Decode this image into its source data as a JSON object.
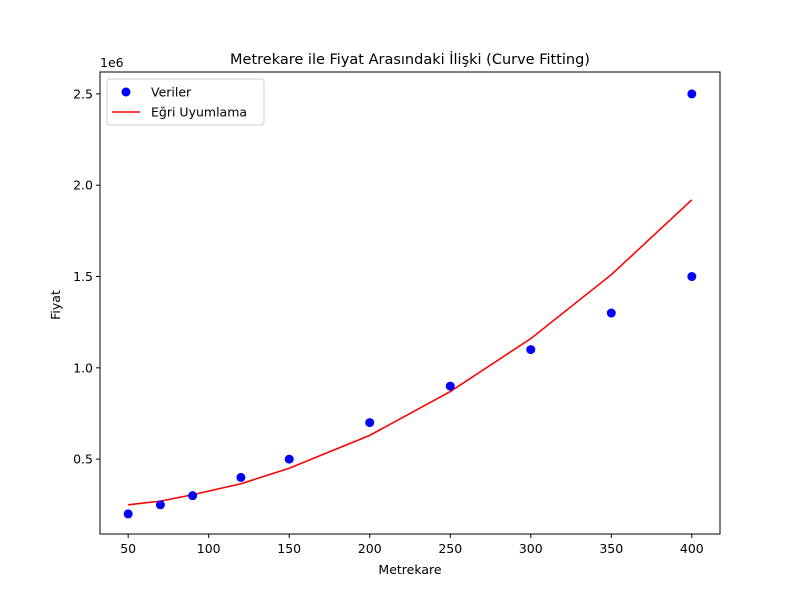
{
  "chart_data": {
    "type": "scatter",
    "title": "Metrekare ile Fiyat Arasındaki İlişki (Curve Fitting)",
    "xlabel": "Metrekare",
    "ylabel": "Fiyat",
    "y_offset_label": "1e6",
    "xlim": [
      32.5,
      417.5
    ],
    "ylim": [
      90000,
      2620000
    ],
    "x_ticks": [
      50,
      100,
      150,
      200,
      250,
      300,
      350,
      400
    ],
    "y_ticks": [
      500000,
      1000000,
      1500000,
      2000000,
      2500000
    ],
    "y_tick_labels": [
      "0.5",
      "1.0",
      "1.5",
      "2.0",
      "2.5"
    ],
    "grid": false,
    "legend_position": "top-left",
    "series": [
      {
        "name": "Veriler",
        "kind": "scatter",
        "color": "#0000ff",
        "x": [
          50,
          70,
          90,
          120,
          150,
          200,
          250,
          300,
          350,
          400,
          400
        ],
        "y": [
          200000,
          250000,
          300000,
          400000,
          500000,
          700000,
          900000,
          1100000,
          1300000,
          1500000,
          2500000
        ]
      },
      {
        "name": "Eğri Uyumlama",
        "kind": "line",
        "color": "#ff0000",
        "x": [
          50,
          70,
          90,
          120,
          150,
          200,
          250,
          300,
          350,
          400
        ],
        "y": [
          250000,
          270000,
          305000,
          365000,
          450000,
          630000,
          870000,
          1160000,
          1510000,
          1920000
        ]
      }
    ]
  }
}
